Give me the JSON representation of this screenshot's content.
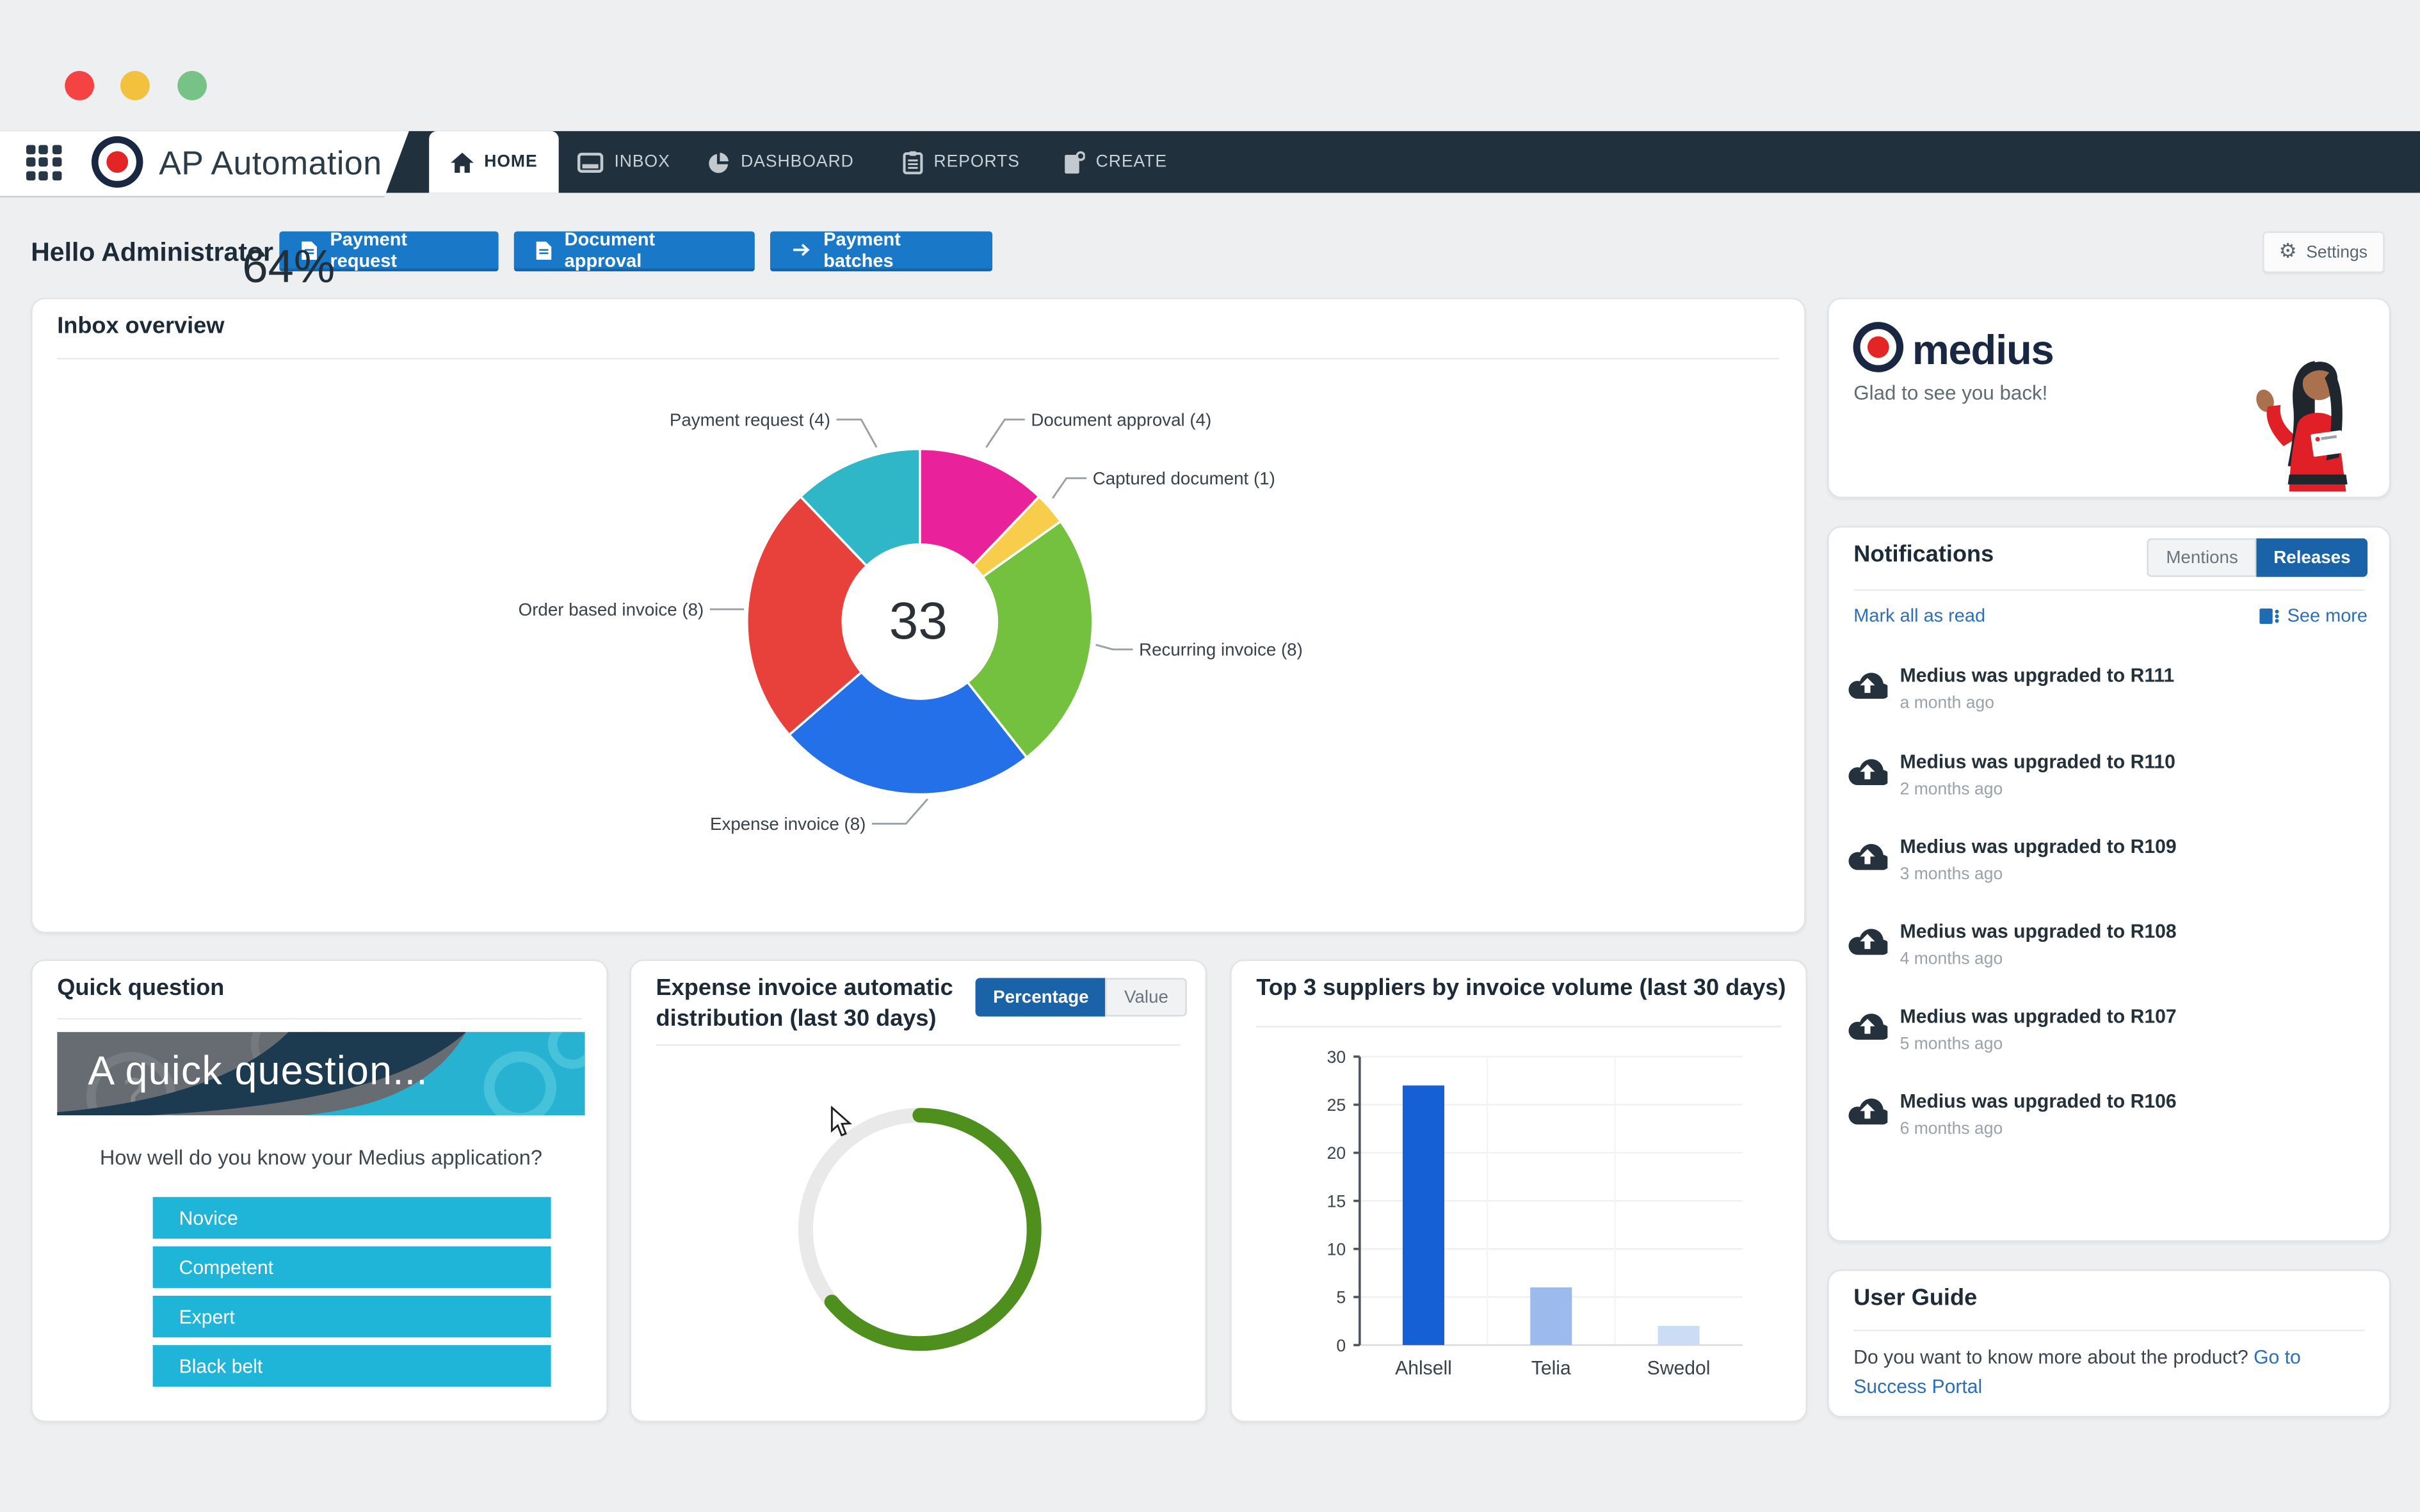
{
  "window": {
    "controls": [
      "close",
      "minimize",
      "zoom"
    ]
  },
  "nav": {
    "app_title": "AP Automation",
    "tabs": [
      {
        "label": "HOME",
        "active": true
      },
      {
        "label": "INBOX",
        "active": false
      },
      {
        "label": "DASHBOARD",
        "active": false
      },
      {
        "label": "REPORTS",
        "active": false
      },
      {
        "label": "CREATE",
        "active": false
      }
    ]
  },
  "header": {
    "greeting": "Hello Administrator",
    "actions": [
      {
        "label": "Payment request",
        "icon": "document-icon"
      },
      {
        "label": "Document approval",
        "icon": "document-icon"
      },
      {
        "label": "Payment batches",
        "icon": "arrow-right-icon"
      }
    ],
    "settings_label": "Settings"
  },
  "inbox_overview": {
    "title": "Inbox overview",
    "total_label": "33"
  },
  "welcome_card": {
    "brand": "medius",
    "message": "Glad to see you back!"
  },
  "notifications": {
    "title": "Notifications",
    "tabs": [
      {
        "label": "Mentions",
        "active": false
      },
      {
        "label": "Releases",
        "active": true
      }
    ],
    "mark_all_label": "Mark all as read",
    "see_more_label": "See more",
    "items": [
      {
        "title": "Medius was upgraded to R111",
        "time": "a month ago"
      },
      {
        "title": "Medius was upgraded to R110",
        "time": "2 months ago"
      },
      {
        "title": "Medius was upgraded to R109",
        "time": "3 months ago"
      },
      {
        "title": "Medius was upgraded to R108",
        "time": "4 months ago"
      },
      {
        "title": "Medius was upgraded to R107",
        "time": "5 months ago"
      },
      {
        "title": "Medius was upgraded to R106",
        "time": "6 months ago"
      }
    ]
  },
  "user_guide": {
    "title": "User Guide",
    "text": "Do you want to know more about the product? ",
    "link_label": "Go to Success Portal"
  },
  "quick_question": {
    "title": "Quick question",
    "banner_text": "A quick question...",
    "question": "How well do you know your Medius application?",
    "options": [
      {
        "label": "Novice"
      },
      {
        "label": "Competent"
      },
      {
        "label": "Expert"
      },
      {
        "label": "Black belt"
      }
    ]
  },
  "auto_distribution": {
    "title_line1": "Expense invoice automatic",
    "title_line2": "distribution (last 30 days)",
    "toggles": [
      {
        "label": "Percentage",
        "active": true
      },
      {
        "label": "Value",
        "active": false
      }
    ],
    "value_label": "64%"
  },
  "top_suppliers": {
    "title": "Top 3 suppliers by invoice volume (last 30 days)"
  },
  "chart_data": [
    {
      "id": "inbox-donut",
      "type": "pie",
      "title": "Inbox overview",
      "subtype": "donut",
      "center_total": 33,
      "series": [
        {
          "label": "Document approval",
          "value": 4,
          "color": "#e9219a"
        },
        {
          "label": "Captured document",
          "value": 1,
          "color": "#f8cd4b"
        },
        {
          "label": "Recurring invoice",
          "value": 8,
          "color": "#74c13f"
        },
        {
          "label": "Expense invoice",
          "value": 8,
          "color": "#2470e8"
        },
        {
          "label": "Order based invoice",
          "value": 8,
          "color": "#e8403a"
        },
        {
          "label": "Payment request",
          "value": 4,
          "color": "#2fb7c7"
        }
      ],
      "legend_position": "callout-labels"
    },
    {
      "id": "auto-distribution",
      "type": "pie",
      "subtype": "progress-ring",
      "title": "Expense invoice automatic distribution (last 30 days)",
      "value_percent": 64,
      "label": "64%",
      "color": "#4f8f1e",
      "track_color": "#e9e9e9"
    },
    {
      "id": "top-suppliers",
      "type": "bar",
      "title": "Top 3 suppliers by invoice volume (last 30 days)",
      "categories": [
        "Ahlsell",
        "Telia",
        "Swedol"
      ],
      "values": [
        27,
        6,
        2
      ],
      "bar_colors": [
        "#1660d6",
        "#9cbaec",
        "#cbdcf4"
      ],
      "xlabel": "",
      "ylabel": "",
      "ylim": [
        0,
        30
      ],
      "yticks": [
        0,
        5,
        10,
        15,
        20,
        25,
        30
      ],
      "grid": true
    }
  ],
  "colors": {
    "background": "#edeff0",
    "navbar": "#20303c",
    "accent_blue": "#1979c8",
    "toggle_blue": "#1b63a8",
    "link_blue": "#2c6fb7",
    "cyan_option": "#1eb5d9",
    "progress_green": "#4f8f1e",
    "brand_red": "#e32526",
    "brand_navy": "#1a2742"
  }
}
